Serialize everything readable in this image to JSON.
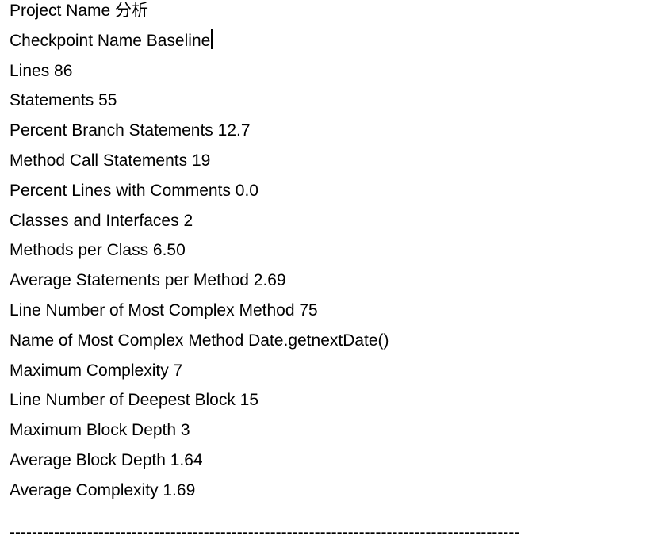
{
  "colors": {
    "text": "#000000",
    "background": "#ffffff",
    "caret": "#000000"
  },
  "document": {
    "fields": [
      {
        "label": "Project Name",
        "value": "分析"
      },
      {
        "label": "Checkpoint Name",
        "value": "Baseline",
        "caret_after_value": true
      },
      {
        "label": "Lines",
        "value": "86"
      },
      {
        "label": "Statements",
        "value": "55"
      },
      {
        "label": "Percent Branch Statements",
        "value": "12.7"
      },
      {
        "label": "Method Call Statements",
        "value": "19"
      },
      {
        "label": "Percent Lines with Comments",
        "value": "0.0"
      },
      {
        "label": "Classes and Interfaces",
        "value": "2"
      },
      {
        "label": "Methods per Class",
        "value": "6.50"
      },
      {
        "label": "Average Statements per Method",
        "value": "2.69"
      },
      {
        "label": "Line Number of Most Complex Method",
        "value": "75"
      },
      {
        "label": "Name of Most Complex Method",
        "value": "Date.getnextDate()"
      },
      {
        "label": "Maximum Complexity",
        "value": "7"
      },
      {
        "label": "Line Number of Deepest Block",
        "value": "15"
      },
      {
        "label": "Maximum Block Depth",
        "value": "3"
      },
      {
        "label": "Average Block Depth",
        "value": "1.64"
      },
      {
        "label": "Average Complexity",
        "value": "1.69"
      }
    ],
    "divider": "--------------------------------------------------------------------------------------------"
  }
}
